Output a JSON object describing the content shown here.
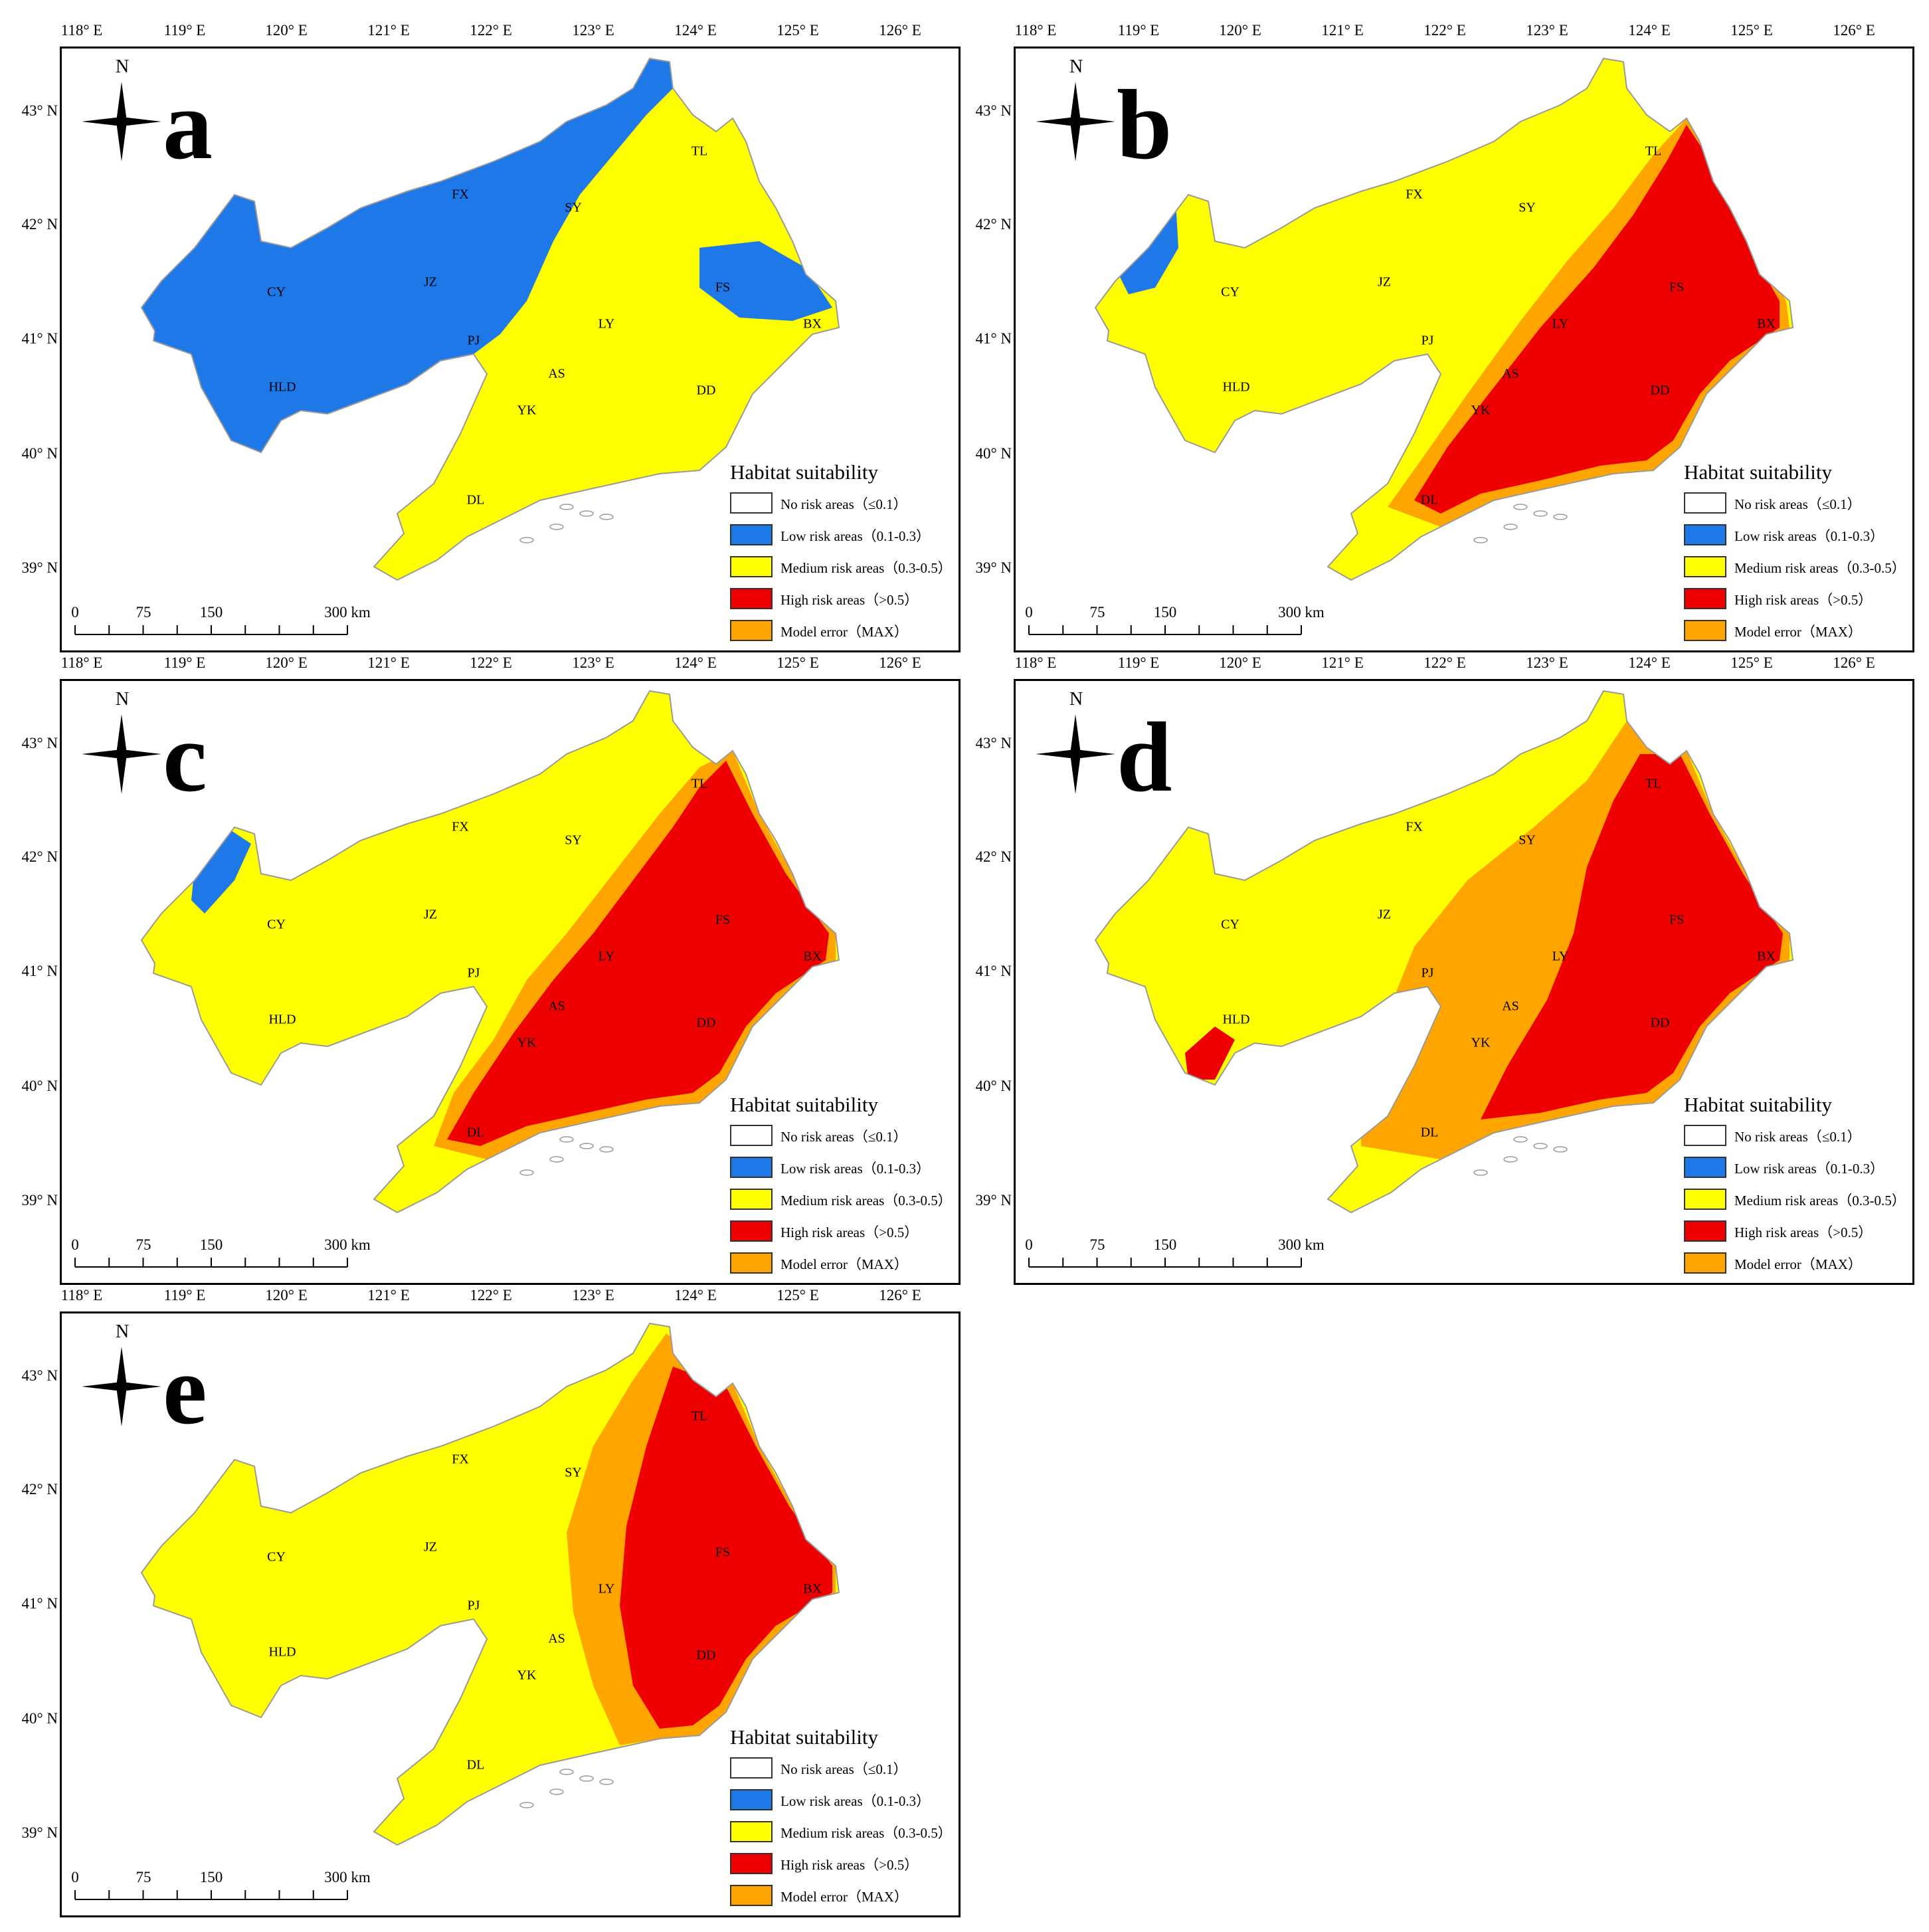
{
  "lon_labels": [
    "118° E",
    "119° E",
    "120° E",
    "121° E",
    "122° E",
    "123° E",
    "124° E",
    "125° E",
    "126° E"
  ],
  "lat_labels": [
    "43° N",
    "42° N",
    "41° N",
    "40° N",
    "39° N"
  ],
  "north_label": "N",
  "scale": {
    "ticks": [
      "0",
      "75",
      "150",
      "300 km"
    ]
  },
  "legend": {
    "title": "Habitat suitability",
    "items": [
      {
        "label": "No risk areas（≤0.1）",
        "color": "#ffffff"
      },
      {
        "label": "Low risk areas（0.1-0.3）",
        "color": "#1f78e8"
      },
      {
        "label": "Medium risk areas（0.3-0.5）",
        "color": "#ffff00"
      },
      {
        "label": "High risk areas（>0.5）",
        "color": "#ee0000"
      },
      {
        "label": "Model error（MAX）",
        "color": "#ffa500"
      }
    ]
  },
  "city_labels": [
    "TL",
    "FX",
    "SY",
    "CY",
    "JZ",
    "FS",
    "LY",
    "BX",
    "PJ",
    "HLD",
    "AS",
    "DD",
    "YK",
    "DL"
  ],
  "panels": [
    {
      "letter": "a"
    },
    {
      "letter": "b"
    },
    {
      "letter": "c"
    },
    {
      "letter": "d"
    },
    {
      "letter": "e"
    }
  ]
}
